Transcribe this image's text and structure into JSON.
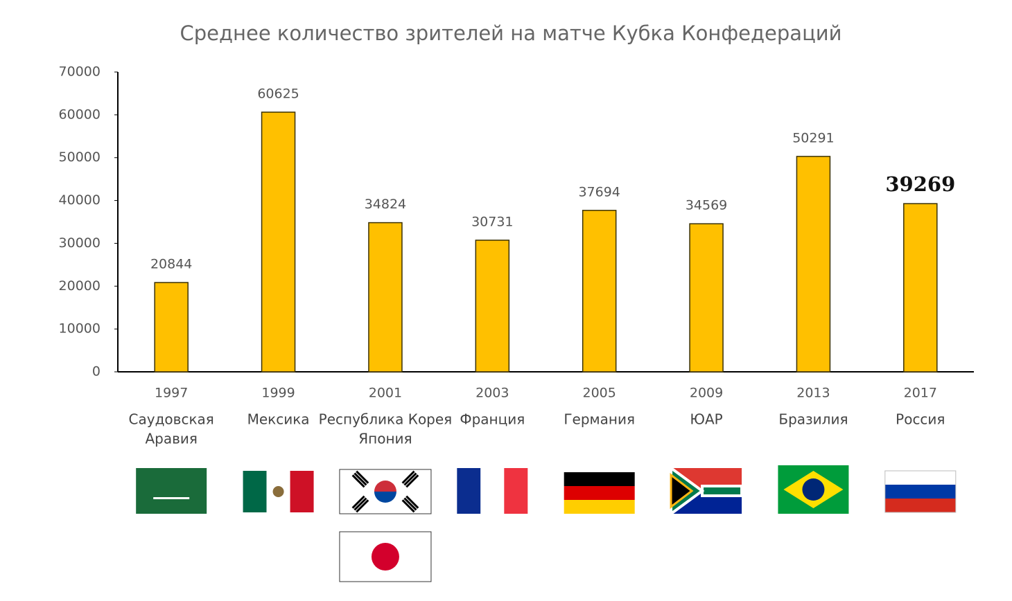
{
  "chart_data": {
    "type": "bar",
    "title": "Среднее количество зрителей на матче Кубка Конфедераций",
    "categories": [
      "1997",
      "1999",
      "2001",
      "2003",
      "2005",
      "2009",
      "2013",
      "2017"
    ],
    "hosts": [
      [
        "Саудовская",
        "Аравия"
      ],
      [
        "Мексика"
      ],
      [
        "Республика Корея",
        "Япония"
      ],
      [
        "Франция"
      ],
      [
        "Германия"
      ],
      [
        "ЮАР"
      ],
      [
        "Бразилия"
      ],
      [
        "Россия"
      ]
    ],
    "values": [
      20844,
      60625,
      34824,
      30731,
      37694,
      34569,
      50291,
      39269
    ],
    "color": "#ffc000",
    "ylim": [
      0,
      70000
    ],
    "yticks": [
      0,
      10000,
      20000,
      30000,
      40000,
      50000,
      60000,
      70000
    ],
    "grid": false
  }
}
